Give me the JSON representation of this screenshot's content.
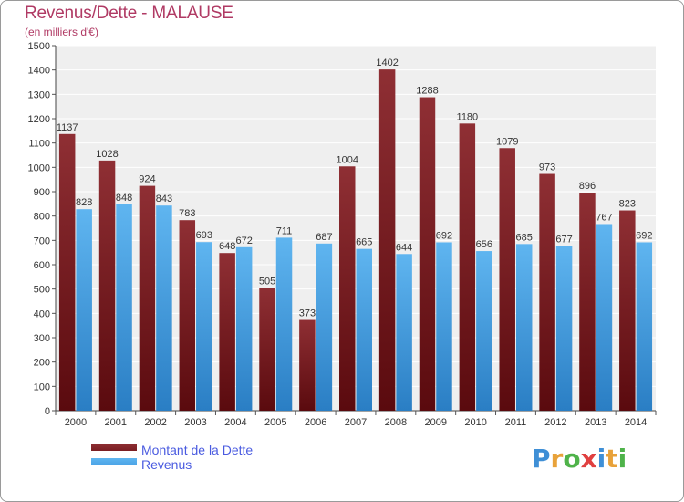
{
  "chart_data": {
    "type": "bar",
    "title": "Revenus/Dette - MALAUSE",
    "subtitle": "(en milliers d'€)",
    "categories": [
      "2000",
      "2001",
      "2002",
      "2003",
      "2004",
      "2005",
      "2006",
      "2007",
      "2008",
      "2009",
      "2010",
      "2011",
      "2012",
      "2013",
      "2014"
    ],
    "series": [
      {
        "name": "Montant de la Dette",
        "color": "#7a1e22",
        "values": [
          1137,
          1028,
          924,
          783,
          648,
          505,
          373,
          1004,
          1402,
          1288,
          1180,
          1079,
          973,
          896,
          823
        ]
      },
      {
        "name": "Revenus",
        "color": "#4aa3e6",
        "values": [
          828,
          848,
          843,
          693,
          672,
          711,
          687,
          665,
          644,
          692,
          656,
          685,
          677,
          767,
          692
        ]
      }
    ],
    "ylim": [
      0,
      1500
    ],
    "yticks": [
      0,
      100,
      200,
      300,
      400,
      500,
      600,
      700,
      800,
      900,
      1000,
      1100,
      1200,
      1300,
      1400,
      1500
    ],
    "grid": true,
    "legend_position": "bottom-left"
  },
  "logo": {
    "text": "Proxiti",
    "letters": [
      "P",
      "r",
      "o",
      "x",
      "i",
      "t",
      "i"
    ],
    "colors": [
      "#3f8fd6",
      "#e8a23a",
      "#4fb34a",
      "#e04040",
      "#3f8fd6",
      "#e8a23a",
      "#4fb34a"
    ]
  }
}
